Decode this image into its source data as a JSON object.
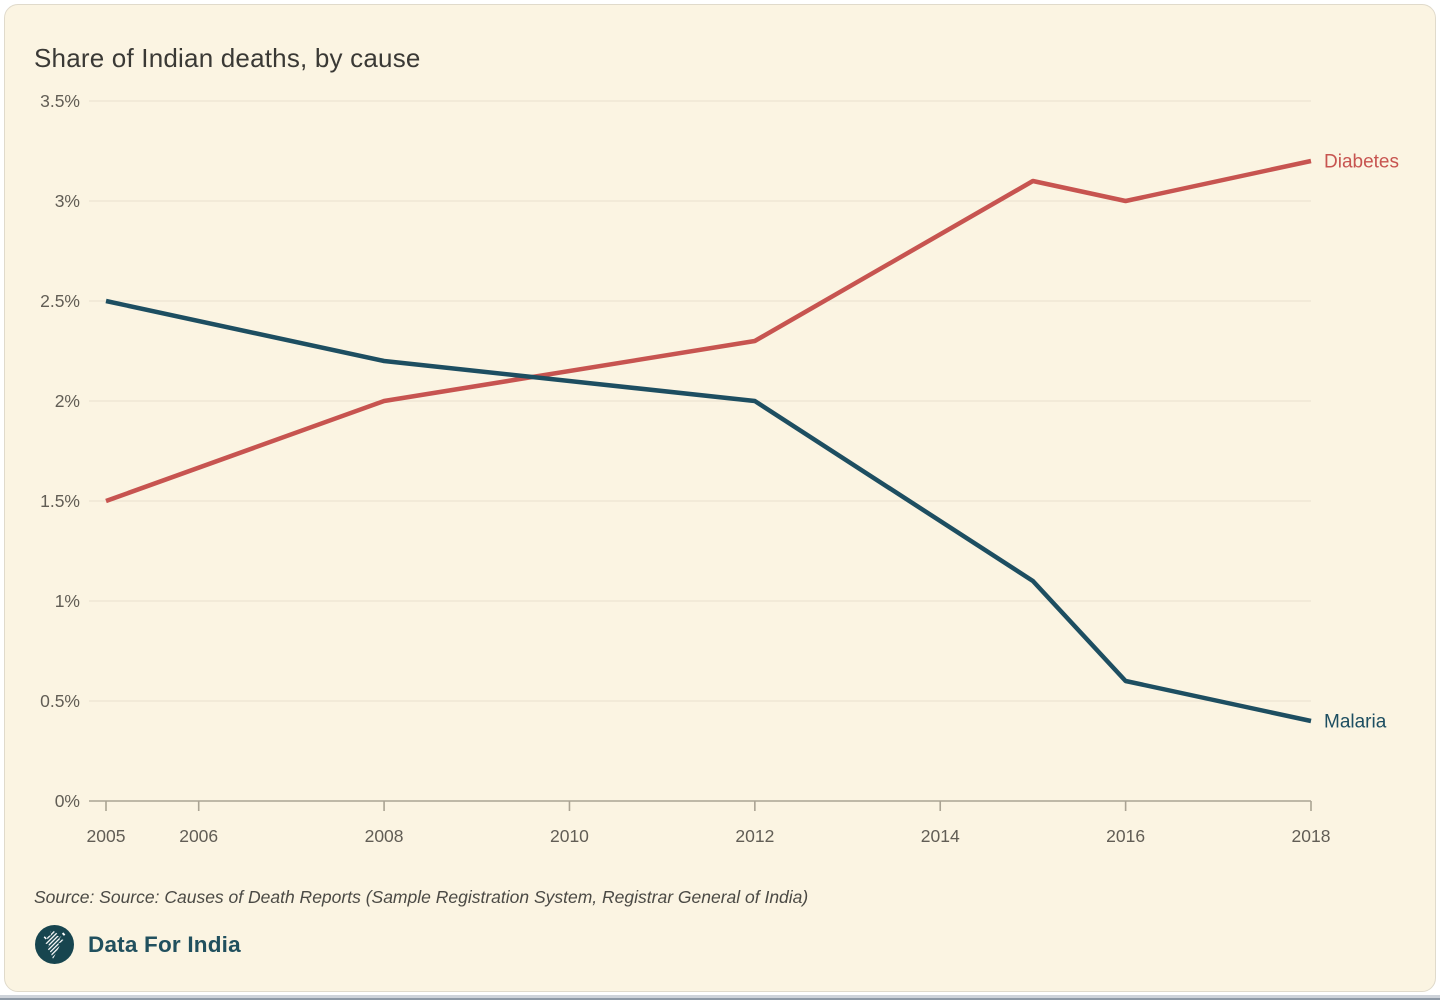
{
  "title": "Share of Indian deaths, by cause",
  "footer": {
    "source": "Source: Source: Causes of Death Reports (Sample Registration System, Registrar General of India)",
    "brand": "Data For India"
  },
  "colors": {
    "background": "#fbf4e2",
    "diabetes_line": "#c75450",
    "malaria_line": "#1d4e61",
    "grid_line": "#e8e1cf",
    "axis_line": "#aaa393",
    "tick_text": "#615d55",
    "title_text": "#3a3935",
    "logo_circle": "#17454f"
  },
  "icons": {
    "logo": "data-for-india-logo"
  },
  "chart_data": {
    "type": "line",
    "title": "Share of Indian deaths, by cause",
    "xlabel": "",
    "ylabel": "",
    "xlim": [
      2005,
      2018
    ],
    "ylim": [
      0,
      3.5
    ],
    "grid": true,
    "legend_position": "line-end-labels",
    "x_ticks": [
      {
        "value": 2005,
        "label": "2005"
      },
      {
        "value": 2006,
        "label": "2006"
      },
      {
        "value": 2008,
        "label": "2008"
      },
      {
        "value": 2010,
        "label": "2010"
      },
      {
        "value": 2012,
        "label": "2012"
      },
      {
        "value": 2014,
        "label": "2014"
      },
      {
        "value": 2016,
        "label": "2016"
      },
      {
        "value": 2018,
        "label": "2018"
      }
    ],
    "y_ticks": [
      {
        "value": 3.5,
        "label": "3.5%"
      },
      {
        "value": 3,
        "label": "3%"
      },
      {
        "value": 2.5,
        "label": "2.5%"
      },
      {
        "value": 2,
        "label": "2%"
      },
      {
        "value": 1.5,
        "label": "1.5%"
      },
      {
        "value": 1,
        "label": "1%"
      },
      {
        "value": 0.5,
        "label": "0.5%"
      },
      {
        "value": 0,
        "label": "0%"
      }
    ],
    "series": [
      {
        "name": "Diabetes",
        "color": "#c75450",
        "points": [
          [
            2005,
            1.5
          ],
          [
            2008,
            2.0
          ],
          [
            2012,
            2.3
          ],
          [
            2015,
            3.1
          ],
          [
            2016,
            3.0
          ],
          [
            2018,
            3.2
          ]
        ]
      },
      {
        "name": "Malaria",
        "color": "#1d4e61",
        "points": [
          [
            2005,
            2.5
          ],
          [
            2008,
            2.2
          ],
          [
            2012,
            2.0
          ],
          [
            2015,
            1.1
          ],
          [
            2016,
            0.6
          ],
          [
            2018,
            0.4
          ]
        ]
      }
    ]
  }
}
